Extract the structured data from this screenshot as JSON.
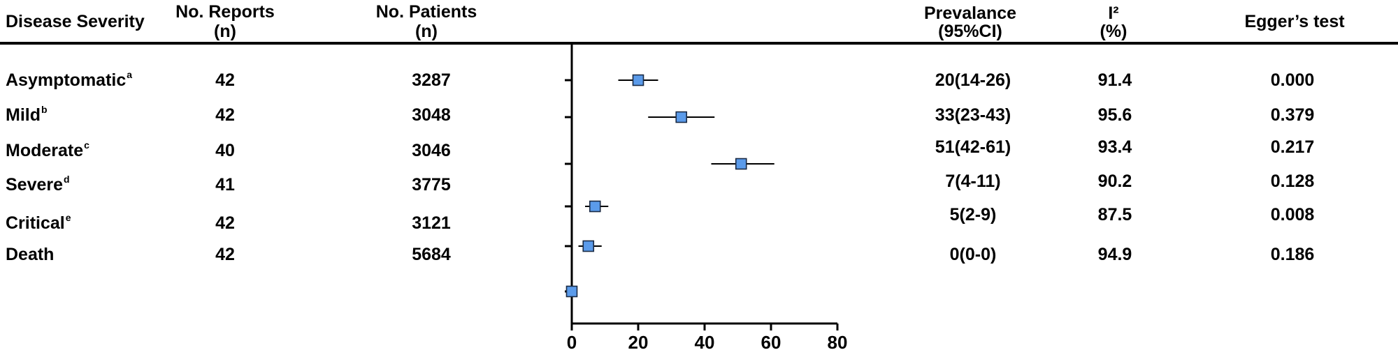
{
  "table": {
    "headers": {
      "disease_severity": "Disease Severity",
      "reports": [
        "No. Reports",
        "(n)"
      ],
      "patients": [
        "No. Patients",
        "(n)"
      ],
      "prevalence": [
        "Prevalance",
        "(95%CI)"
      ],
      "i2": [
        "I²",
        "(%)"
      ],
      "egger": "Egger’s test"
    },
    "rows": [
      {
        "label": "Asymptomatic",
        "sup": "a",
        "reports": "42",
        "patients": "3287",
        "prevalence": "20(14-26)",
        "i2": "91.4",
        "egger": "0.000"
      },
      {
        "label": "Mild",
        "sup": "b",
        "reports": "42",
        "patients": "3048",
        "prevalence": "33(23-43)",
        "i2": "95.6",
        "egger": "0.379"
      },
      {
        "label": "Moderate",
        "sup": "c",
        "reports": "40",
        "patients": "3046",
        "prevalence": "51(42-61)",
        "i2": "93.4",
        "egger": "0.217"
      },
      {
        "label": "Severe",
        "sup": "d",
        "reports": "41",
        "patients": "3775",
        "prevalence": "7(4-11)",
        "i2": "90.2",
        "egger": "0.128"
      },
      {
        "label": "Critical",
        "sup": "e",
        "reports": "42",
        "patients": "3121",
        "prevalence": "5(2-9)",
        "i2": "87.5",
        "egger": "0.008"
      },
      {
        "label": "Death",
        "sup": "",
        "reports": "42",
        "patients": "5684",
        "prevalence": "0(0-0)",
        "i2": "94.9",
        "egger": "0.186"
      }
    ]
  },
  "chart_data": {
    "type": "scatter",
    "title": "",
    "xlabel": "",
    "ylabel": "",
    "xlim": [
      0,
      80
    ],
    "xticks": [
      0,
      20,
      40,
      60,
      80
    ],
    "categories": [
      "Asymptomatic",
      "Mild",
      "Moderate",
      "Severe",
      "Critical",
      "Death"
    ],
    "series": [
      {
        "points": [
          {
            "y": "Asymptomatic",
            "estimate": 20,
            "lower": 14,
            "upper": 26
          },
          {
            "y": "Mild",
            "estimate": 33,
            "lower": 23,
            "upper": 43
          },
          {
            "y": "Moderate",
            "estimate": 51,
            "lower": 42,
            "upper": 61
          },
          {
            "y": "Severe",
            "estimate": 7,
            "lower": 4,
            "upper": 11
          },
          {
            "y": "Critical",
            "estimate": 5,
            "lower": 2,
            "upper": 9
          },
          {
            "y": "Death",
            "estimate": 0,
            "lower": 0,
            "upper": 0
          }
        ]
      }
    ],
    "marker_color": "#5b9bea",
    "grid": false
  }
}
